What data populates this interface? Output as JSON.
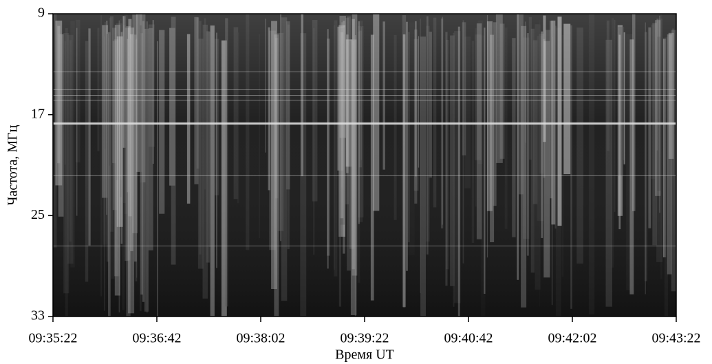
{
  "chart_data": {
    "type": "spectrogram",
    "ylabel": "Частота, МГц",
    "xlabel": "Время UT",
    "x": [
      "09:35:22",
      "09:36:42",
      "09:38:02",
      "09:39:22",
      "09:40:42",
      "09:42:02",
      "09:43:22"
    ],
    "ylim": [
      33,
      9
    ],
    "yticks": [
      9,
      17,
      25,
      33
    ],
    "colormap": "gray"
  }
}
